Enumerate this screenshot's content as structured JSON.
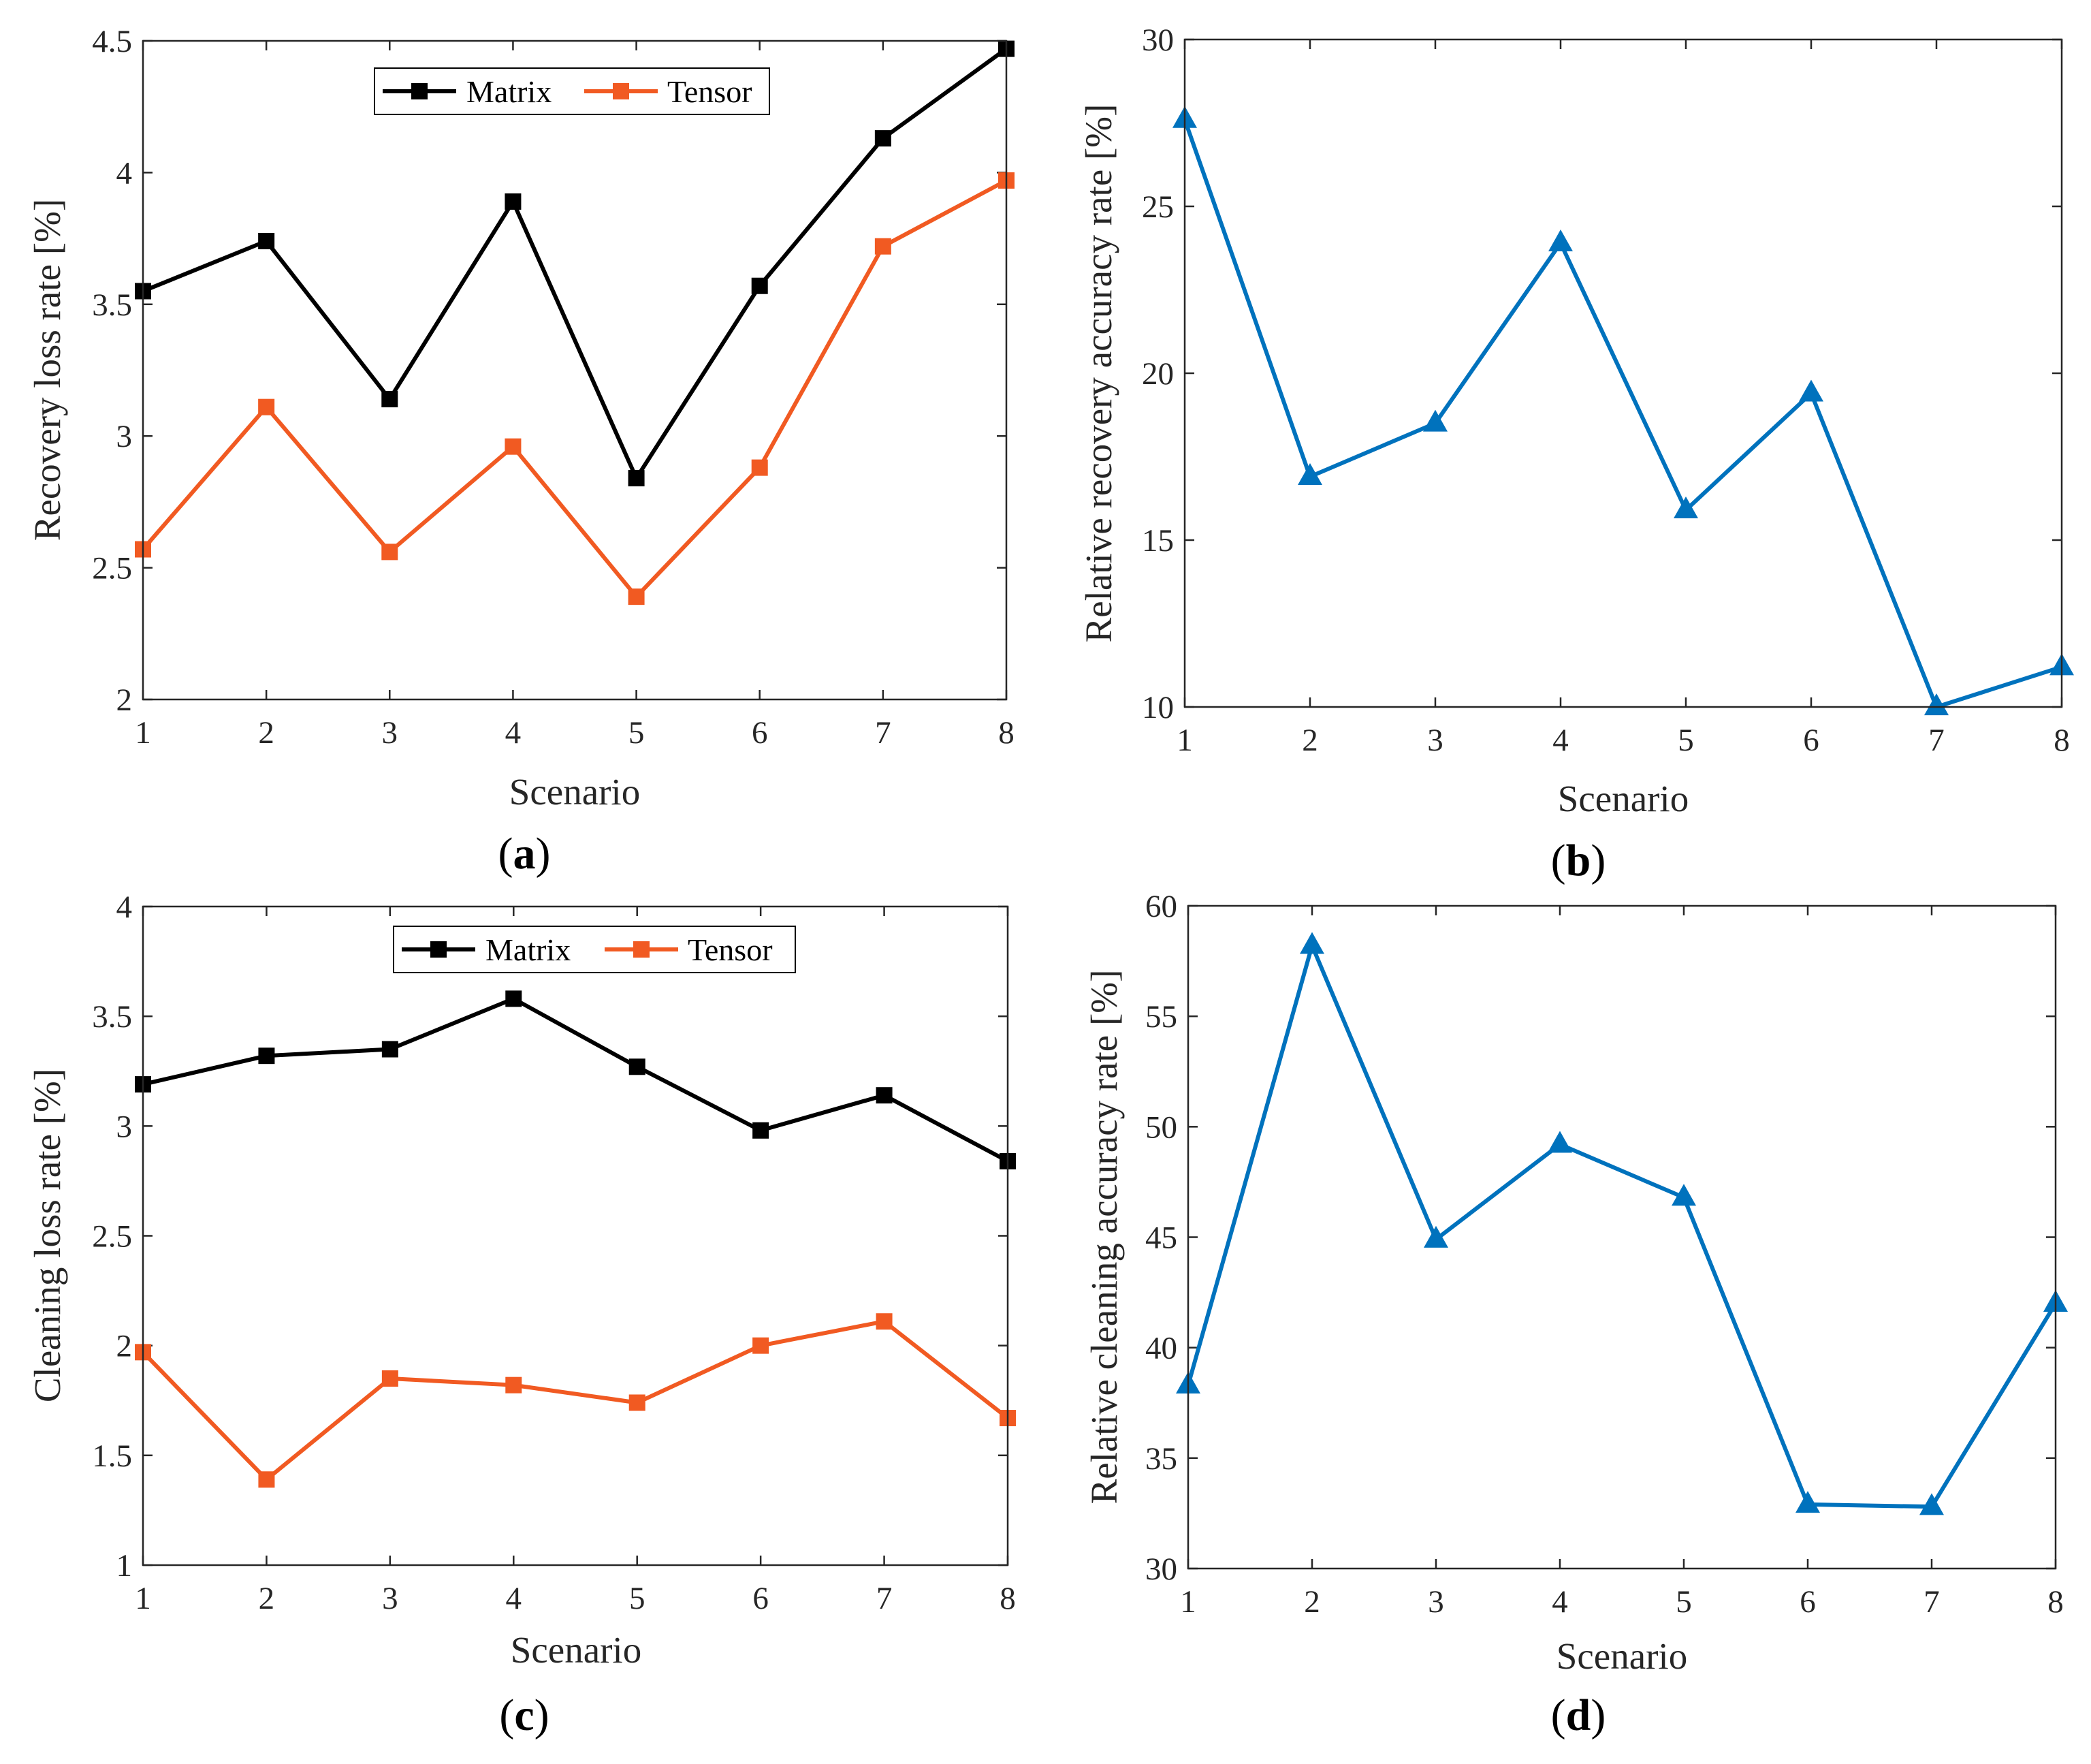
{
  "colors": {
    "matrix": "#000000",
    "tensor": "#f15a22",
    "relative": "#0072bd",
    "axis": "#262626"
  },
  "chart_data": [
    {
      "id": "a",
      "type": "line",
      "panel_label": {
        "open": "(",
        "letter": "a",
        "close": ")"
      },
      "xlabel": "Scenario",
      "ylabel": "Recovery loss rate [%]",
      "x": [
        1,
        2,
        3,
        4,
        5,
        6,
        7,
        8
      ],
      "xlim": [
        1,
        8
      ],
      "ylim": [
        2,
        4.5
      ],
      "yticks": [
        2,
        2.5,
        3,
        3.5,
        4,
        4.5
      ],
      "ytick_labels": [
        "2",
        "2.5",
        "3",
        "3.5",
        "4",
        "4.5"
      ],
      "legend": "top-center",
      "series": [
        {
          "name": "Matrix",
          "color": "#000000",
          "marker": "square",
          "values": [
            3.55,
            3.74,
            3.14,
            3.89,
            2.84,
            3.57,
            4.13,
            4.47
          ]
        },
        {
          "name": "Tensor",
          "color": "#f15a22",
          "marker": "square",
          "values": [
            2.57,
            3.11,
            2.56,
            2.96,
            2.39,
            2.88,
            3.72,
            3.97
          ]
        }
      ]
    },
    {
      "id": "b",
      "type": "line",
      "panel_label": {
        "open": "(",
        "letter": "b",
        "close": ")"
      },
      "xlabel": "Scenario",
      "ylabel": "Relative recovery accuracy rate [%]",
      "x": [
        1,
        2,
        3,
        4,
        5,
        6,
        7,
        8
      ],
      "xlim": [
        1,
        8
      ],
      "ylim": [
        10,
        30
      ],
      "yticks": [
        10,
        15,
        20,
        25,
        30
      ],
      "ytick_labels": [
        "10",
        "15",
        "20",
        "25",
        "30"
      ],
      "series": [
        {
          "name": "Relative recovery accuracy",
          "color": "#0072bd",
          "marker": "triangle",
          "values": [
            27.6,
            16.9,
            18.5,
            23.9,
            15.9,
            19.4,
            10.0,
            11.2
          ]
        }
      ]
    },
    {
      "id": "c",
      "type": "line",
      "panel_label": {
        "open": "(",
        "letter": "c",
        "close": ")"
      },
      "xlabel": "Scenario",
      "ylabel": "Cleaning loss rate [%]",
      "x": [
        1,
        2,
        3,
        4,
        5,
        6,
        7,
        8
      ],
      "xlim": [
        1,
        8
      ],
      "ylim": [
        1,
        4
      ],
      "yticks": [
        1,
        1.5,
        2,
        2.5,
        3,
        3.5,
        4
      ],
      "ytick_labels": [
        "1",
        "1.5",
        "2",
        "2.5",
        "3",
        "3.5",
        "4"
      ],
      "legend": "top-center",
      "series": [
        {
          "name": "Matrix",
          "color": "#000000",
          "marker": "square",
          "values": [
            3.19,
            3.32,
            3.35,
            3.58,
            3.27,
            2.98,
            3.14,
            2.84
          ]
        },
        {
          "name": "Tensor",
          "color": "#f15a22",
          "marker": "square",
          "values": [
            1.97,
            1.39,
            1.85,
            1.82,
            1.74,
            2.0,
            2.11,
            1.67
          ]
        }
      ]
    },
    {
      "id": "d",
      "type": "line",
      "panel_label": {
        "open": "(",
        "letter": "d",
        "close": ")"
      },
      "xlabel": "Scenario",
      "ylabel": "Relative cleaning accuracy rate [%]",
      "x": [
        1,
        2,
        3,
        4,
        5,
        6,
        7,
        8
      ],
      "xlim": [
        1,
        8
      ],
      "ylim": [
        30,
        60
      ],
      "yticks": [
        30,
        35,
        40,
        45,
        50,
        55,
        60
      ],
      "ytick_labels": [
        "30",
        "35",
        "40",
        "45",
        "50",
        "55",
        "60"
      ],
      "series": [
        {
          "name": "Relative cleaning accuracy",
          "color": "#0072bd",
          "marker": "triangle",
          "values": [
            38.3,
            58.2,
            44.9,
            49.2,
            46.8,
            32.9,
            32.8,
            42.0
          ]
        }
      ]
    }
  ]
}
